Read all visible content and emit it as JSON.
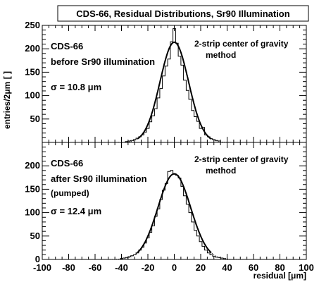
{
  "chart_data": {
    "title": "CDS-66, Residual Distributions, Sr90 Illumination",
    "xlabel": "residual [μm]",
    "ylabel": "entries/2μm [ ]",
    "xlim": [
      -100,
      100
    ],
    "x_ticks": [
      -100,
      -80,
      -60,
      -40,
      -20,
      0,
      20,
      40,
      60,
      80,
      100
    ],
    "bin_width": 2,
    "charts": [
      {
        "type": "line",
        "panel": "top",
        "ylim": [
          0,
          250
        ],
        "y_ticks": [
          0,
          50,
          100,
          150,
          200,
          250
        ],
        "y_tick_labels": [
          "",
          "50",
          "100",
          "150",
          "200",
          "250"
        ],
        "annotation": {
          "line1": "CDS-66",
          "line2": "before Sr90 illumination",
          "sigma": "σ = 10.8 μm"
        },
        "method": {
          "line1": "2-strip center of gravity",
          "line2": "method"
        },
        "fit": {
          "amplitude": 214,
          "mean": 0,
          "sigma": 10.8
        },
        "series": [
          {
            "name": "histogram",
            "x": [
              -36,
              -34,
              -32,
              -30,
              -28,
              -26,
              -24,
              -22,
              -20,
              -18,
              -16,
              -14,
              -12,
              -10,
              -8,
              -6,
              -4,
              -2,
              0,
              2,
              4,
              6,
              8,
              10,
              12,
              14,
              16,
              18,
              20,
              22,
              24,
              26,
              28,
              30,
              32,
              34
            ],
            "values": [
              2,
              3,
              4,
              6,
              9,
              12,
              16,
              22,
              30,
              44,
              57,
              72,
              95,
              115,
              142,
              163,
              178,
              215,
              243,
              212,
              184,
              165,
              133,
              111,
              92,
              68,
              55,
              45,
              30,
              32,
              16,
              12,
              8,
              6,
              4,
              3
            ]
          }
        ]
      },
      {
        "type": "line",
        "panel": "bottom",
        "ylim": [
          0,
          250
        ],
        "y_ticks": [
          0,
          50,
          100,
          150,
          200,
          250
        ],
        "y_tick_labels": [
          "0",
          "50",
          "100",
          "150",
          "200",
          ""
        ],
        "annotation": {
          "line1": "CDS-66",
          "line2": "after Sr90 illumination",
          "line3": "(pumped)",
          "sigma": "σ = 12.4 μm"
        },
        "method": {
          "line1": "2-strip center of gravity",
          "line2": "method"
        },
        "fit": {
          "amplitude": 183,
          "mean": 0,
          "sigma": 12.4
        },
        "series": [
          {
            "name": "histogram",
            "x": [
              -40,
              -38,
              -36,
              -34,
              -32,
              -30,
              -28,
              -26,
              -24,
              -22,
              -20,
              -18,
              -16,
              -14,
              -12,
              -10,
              -8,
              -6,
              -4,
              -2,
              0,
              2,
              4,
              6,
              8,
              10,
              12,
              14,
              16,
              18,
              20,
              22,
              24,
              26,
              28,
              30,
              32,
              34,
              36,
              38
            ],
            "values": [
              2,
              3,
              4,
              6,
              8,
              10,
              14,
              20,
              26,
              35,
              46,
              58,
              72,
              92,
              108,
              128,
              148,
              162,
              188,
              190,
              182,
              180,
              174,
              156,
              136,
              118,
              100,
              80,
              62,
              50,
              38,
              28,
              20,
              14,
              10,
              7,
              5,
              4,
              3,
              2
            ]
          }
        ]
      }
    ]
  }
}
